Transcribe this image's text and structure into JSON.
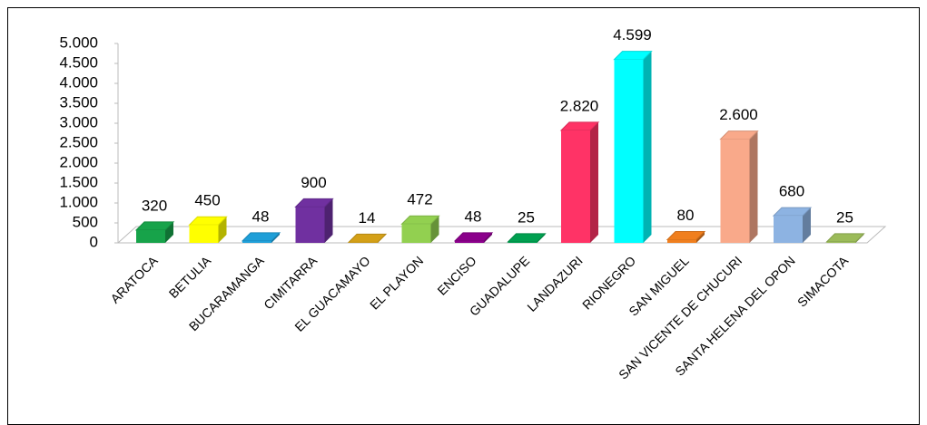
{
  "chart_data": {
    "type": "bar3d",
    "categories": [
      "ARATOCA",
      "BETULIA",
      "BUCARAMANGA",
      "CIMITARRA",
      "EL GUACAMAYO",
      "EL PLAYON",
      "ENCISO",
      "GUADALUPE",
      "LANDAZURI",
      "RIONEGRO",
      "SAN MIGUEL",
      "SAN VICENTE DE CHUCURI",
      "SANTA HELENA DEL OPON",
      "SIMACOTA"
    ],
    "values": [
      320,
      450,
      48,
      900,
      14,
      472,
      48,
      25,
      2820,
      4599,
      80,
      2600,
      680,
      25
    ],
    "value_labels": [
      "320",
      "450",
      "48",
      "900",
      "14",
      "472",
      "48",
      "25",
      "2.820",
      "4.599",
      "80",
      "2.600",
      "680",
      "25"
    ],
    "colors": [
      "#17a34a",
      "#ffff00",
      "#1f9fd8",
      "#7030a0",
      "#d4a017",
      "#92d050",
      "#8b008b",
      "#00a050",
      "#ff3366",
      "#00ffff",
      "#f07f1e",
      "#f9a98a",
      "#8db3e2",
      "#9bbb59"
    ],
    "ylim": [
      0,
      5000
    ],
    "yticks": [
      0,
      500,
      {
        "value": 1000,
        "label": "1.000"
      },
      {
        "value": 1500,
        "label": "1.500"
      },
      {
        "value": 2000,
        "label": "2.000"
      },
      {
        "value": 2500,
        "label": "2.500"
      },
      {
        "value": 3000,
        "label": "3.000"
      },
      {
        "value": 3500,
        "label": "3.500"
      },
      {
        "value": 4000,
        "label": "4.000"
      },
      {
        "value": 4500,
        "label": "4.500"
      },
      {
        "value": 5000,
        "label": "5.000"
      }
    ]
  }
}
